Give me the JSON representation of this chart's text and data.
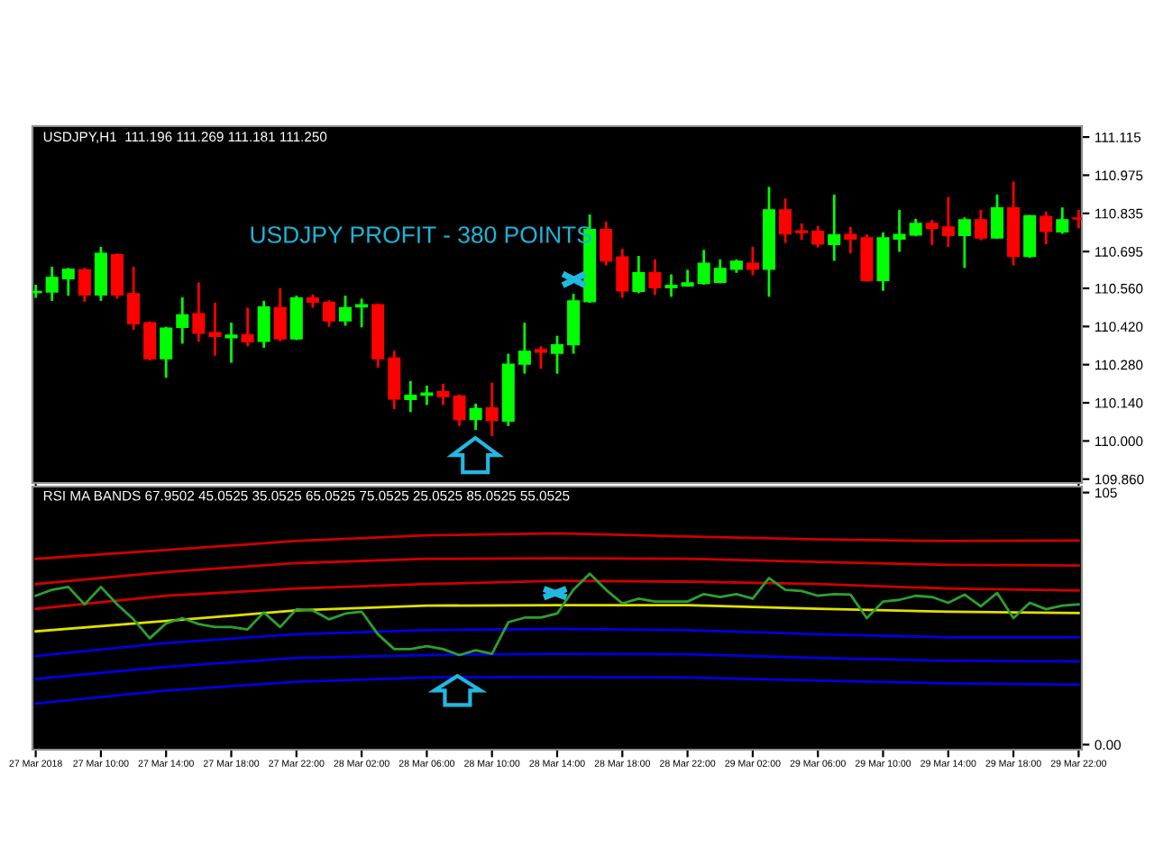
{
  "chart_data": [
    {
      "type": "candlestick",
      "title": "USDJPY,H1  111.196 111.269 111.181 111.250",
      "annotations": [
        "USDJPY PROFIT - 380 POINTS"
      ],
      "x": [
        "2018-03-27T06:00",
        "2018-03-27T07:00",
        "2018-03-27T08:00",
        "2018-03-27T09:00",
        "2018-03-27T10:00",
        "2018-03-27T11:00",
        "2018-03-27T12:00",
        "2018-03-27T13:00",
        "2018-03-27T14:00",
        "2018-03-27T15:00",
        "2018-03-27T16:00",
        "2018-03-27T17:00",
        "2018-03-27T18:00",
        "2018-03-27T19:00",
        "2018-03-27T20:00",
        "2018-03-27T21:00",
        "2018-03-27T22:00",
        "2018-03-27T23:00",
        "2018-03-28T00:00",
        "2018-03-28T01:00",
        "2018-03-28T02:00",
        "2018-03-28T03:00",
        "2018-03-28T04:00",
        "2018-03-28T05:00",
        "2018-03-28T06:00",
        "2018-03-28T07:00",
        "2018-03-28T08:00",
        "2018-03-28T09:00",
        "2018-03-28T10:00",
        "2018-03-28T11:00",
        "2018-03-28T12:00",
        "2018-03-28T13:00",
        "2018-03-28T14:00",
        "2018-03-28T15:00",
        "2018-03-28T16:00",
        "2018-03-28T17:00",
        "2018-03-28T18:00",
        "2018-03-28T19:00",
        "2018-03-28T20:00",
        "2018-03-28T21:00",
        "2018-03-28T22:00",
        "2018-03-28T23:00",
        "2018-03-29T00:00",
        "2018-03-29T01:00",
        "2018-03-29T02:00",
        "2018-03-29T03:00",
        "2018-03-29T04:00",
        "2018-03-29T05:00",
        "2018-03-29T06:00",
        "2018-03-29T07:00",
        "2018-03-29T08:00",
        "2018-03-29T09:00",
        "2018-03-29T10:00",
        "2018-03-29T11:00",
        "2018-03-29T12:00",
        "2018-03-29T13:00",
        "2018-03-29T14:00",
        "2018-03-29T15:00",
        "2018-03-29T16:00",
        "2018-03-29T17:00",
        "2018-03-29T18:00",
        "2018-03-29T19:00",
        "2018-03-29T20:00",
        "2018-03-29T21:00",
        "2018-03-29T22:00"
      ],
      "ohlc": [
        [
          110.544,
          110.573,
          110.525,
          110.549
        ],
        [
          110.547,
          110.639,
          110.514,
          110.6
        ],
        [
          110.595,
          110.635,
          110.533,
          110.63
        ],
        [
          110.628,
          110.635,
          110.511,
          110.536
        ],
        [
          110.536,
          110.712,
          110.514,
          110.688
        ],
        [
          110.683,
          110.688,
          110.522,
          110.536
        ],
        [
          110.54,
          110.639,
          110.408,
          110.43
        ],
        [
          110.434,
          110.439,
          110.295,
          110.302
        ],
        [
          110.302,
          110.419,
          110.232,
          110.414
        ],
        [
          110.417,
          110.527,
          110.357,
          110.463
        ],
        [
          110.467,
          110.582,
          110.364,
          110.395
        ],
        [
          110.397,
          110.507,
          110.313,
          110.384
        ],
        [
          110.379,
          110.434,
          110.287,
          110.388
        ],
        [
          110.39,
          110.489,
          110.348,
          110.364
        ],
        [
          110.366,
          110.514,
          110.342,
          110.492
        ],
        [
          110.489,
          110.56,
          110.366,
          110.375
        ],
        [
          110.375,
          110.533,
          110.37,
          110.525
        ],
        [
          110.525,
          110.538,
          110.489,
          110.509
        ],
        [
          110.509,
          110.516,
          110.419,
          110.441
        ],
        [
          110.441,
          110.533,
          110.423,
          110.489
        ],
        [
          110.492,
          110.522,
          110.417,
          110.5
        ],
        [
          110.5,
          110.505,
          110.269,
          110.302
        ],
        [
          110.304,
          110.331,
          110.117,
          110.154
        ],
        [
          110.152,
          110.22,
          110.106,
          110.168
        ],
        [
          110.168,
          110.203,
          110.132,
          110.176
        ],
        [
          110.181,
          110.21,
          110.132,
          110.163
        ],
        [
          110.165,
          110.17,
          110.055,
          110.079
        ],
        [
          110.079,
          110.137,
          110.04,
          110.119
        ],
        [
          110.121,
          110.214,
          110.018,
          110.075
        ],
        [
          110.073,
          110.32,
          110.055,
          110.282
        ],
        [
          110.282,
          110.434,
          110.247,
          110.329
        ],
        [
          110.335,
          110.348,
          110.265,
          110.326
        ],
        [
          110.322,
          110.386,
          110.247,
          110.353
        ],
        [
          110.353,
          110.54,
          110.32,
          110.514
        ],
        [
          110.511,
          110.831,
          110.507,
          110.776
        ],
        [
          110.776,
          110.804,
          110.644,
          110.661
        ],
        [
          110.675,
          110.705,
          110.525,
          110.551
        ],
        [
          110.549,
          110.679,
          110.542,
          110.617
        ],
        [
          110.617,
          110.666,
          110.536,
          110.562
        ],
        [
          110.562,
          110.611,
          110.529,
          110.571
        ],
        [
          110.569,
          110.628,
          110.566,
          110.58
        ],
        [
          110.578,
          110.701,
          110.573,
          110.652
        ],
        [
          110.582,
          110.666,
          110.578,
          110.633
        ],
        [
          110.63,
          110.666,
          110.617,
          110.659
        ],
        [
          110.652,
          110.712,
          110.608,
          110.63
        ],
        [
          110.63,
          110.932,
          110.529,
          110.848
        ],
        [
          110.848,
          110.89,
          110.727,
          110.76
        ],
        [
          110.771,
          110.798,
          110.738,
          110.765
        ],
        [
          110.769,
          110.789,
          110.71,
          110.723
        ],
        [
          110.721,
          110.904,
          110.661,
          110.756
        ],
        [
          110.758,
          110.785,
          110.688,
          110.741
        ],
        [
          110.745,
          110.758,
          110.584,
          110.589
        ],
        [
          110.589,
          110.765,
          110.551,
          110.745
        ],
        [
          110.741,
          110.848,
          110.694,
          110.758
        ],
        [
          110.756,
          110.815,
          110.751,
          110.798
        ],
        [
          110.798,
          110.811,
          110.719,
          110.78
        ],
        [
          110.785,
          110.895,
          110.712,
          110.754
        ],
        [
          110.754,
          110.82,
          110.635,
          110.811
        ],
        [
          110.811,
          110.848,
          110.736,
          110.745
        ],
        [
          110.745,
          110.904,
          110.741,
          110.855
        ],
        [
          110.855,
          110.952,
          110.644,
          110.677
        ],
        [
          110.677,
          110.829,
          110.672,
          110.826
        ],
        [
          110.824,
          110.842,
          110.721,
          110.769
        ],
        [
          110.767,
          110.857,
          110.76,
          110.811
        ],
        [
          110.818,
          110.848,
          110.78,
          110.815
        ]
      ],
      "colors": [
        "#00ff00",
        "#00ff00",
        "#00ff00",
        "#ff0000",
        "#00ff00",
        "#ff0000",
        "#ff0000",
        "#ff0000",
        "#00ff00",
        "#00ff00",
        "#ff0000",
        "#ff0000",
        "#00ff00",
        "#ff0000",
        "#00ff00",
        "#ff0000",
        "#00ff00",
        "#ff0000",
        "#ff0000",
        "#00ff00",
        "#00ff00",
        "#ff0000",
        "#ff0000",
        "#00ff00",
        "#00ff00",
        "#ff0000",
        "#ff0000",
        "#00ff00",
        "#ff0000",
        "#00ff00",
        "#00ff00",
        "#ff0000",
        "#00ff00",
        "#00ff00",
        "#00ff00",
        "#ff0000",
        "#ff0000",
        "#00ff00",
        "#ff0000",
        "#00ff00",
        "#00ff00",
        "#00ff00",
        "#00ff00",
        "#00ff00",
        "#ff0000",
        "#00ff00",
        "#ff0000",
        "#ff0000",
        "#ff0000",
        "#00ff00",
        "#ff0000",
        "#ff0000",
        "#00ff00",
        "#00ff00",
        "#00ff00",
        "#ff0000",
        "#ff0000",
        "#00ff00",
        "#ff0000",
        "#00ff00",
        "#ff0000",
        "#00ff00",
        "#ff0000",
        "#00ff00",
        "#ff0000"
      ],
      "xlim": [
        "2018-03-27T05:48",
        "2018-03-29T22:12"
      ],
      "ylim": [
        109.846,
        111.155
      ],
      "xticks": [
        {
          "value": "2018-03-27T06:00",
          "label": null
        },
        {
          "value": "2018-03-29T22:00",
          "label": null
        }
      ],
      "yticks": [
        111.115,
        110.975,
        110.835,
        110.695,
        {
          "value": 110.56,
          "label": "110.560"
        },
        {
          "value": 110.42,
          "label": "110.420"
        },
        {
          "value": 110.28,
          "label": "110.280"
        },
        {
          "value": 110.14,
          "label": "110.140"
        },
        {
          "value": 110.0,
          "label": "110.000"
        },
        {
          "value": 109.86,
          "label": "109.860"
        }
      ],
      "tick_labels": "y",
      "grid": false,
      "legend": false
    },
    {
      "type": "line",
      "title": "RSI MA BANDS 67.9502 45.0525 35.0525 65.0525 75.0525 25.0525 85.0525 55.0525",
      "x": [
        "2018-03-27T06:00",
        "2018-03-27T07:00",
        "2018-03-27T08:00",
        "2018-03-27T09:00",
        "2018-03-27T10:00",
        "2018-03-27T11:00",
        "2018-03-27T12:00",
        "2018-03-27T13:00",
        "2018-03-27T14:00",
        "2018-03-27T15:00",
        "2018-03-27T16:00",
        "2018-03-27T17:00",
        "2018-03-27T18:00",
        "2018-03-27T19:00",
        "2018-03-27T20:00",
        "2018-03-27T21:00",
        "2018-03-27T22:00",
        "2018-03-27T23:00",
        "2018-03-28T00:00",
        "2018-03-28T01:00",
        "2018-03-28T02:00",
        "2018-03-28T03:00",
        "2018-03-28T04:00",
        "2018-03-28T05:00",
        "2018-03-28T06:00",
        "2018-03-28T07:00",
        "2018-03-28T08:00",
        "2018-03-28T09:00",
        "2018-03-28T10:00",
        "2018-03-28T11:00",
        "2018-03-28T12:00",
        "2018-03-28T13:00",
        "2018-03-28T14:00",
        "2018-03-28T15:00",
        "2018-03-28T16:00",
        "2018-03-28T17:00",
        "2018-03-28T18:00",
        "2018-03-28T19:00",
        "2018-03-28T20:00",
        "2018-03-28T21:00",
        "2018-03-28T22:00",
        "2018-03-28T23:00",
        "2018-03-29T00:00",
        "2018-03-29T01:00",
        "2018-03-29T02:00",
        "2018-03-29T03:00",
        "2018-03-29T04:00",
        "2018-03-29T05:00",
        "2018-03-29T06:00",
        "2018-03-29T07:00",
        "2018-03-29T08:00",
        "2018-03-29T09:00",
        "2018-03-29T10:00",
        "2018-03-29T11:00",
        "2018-03-29T12:00",
        "2018-03-29T13:00",
        "2018-03-29T14:00",
        "2018-03-29T15:00",
        "2018-03-29T16:00",
        "2018-03-29T17:00",
        "2018-03-29T18:00",
        "2018-03-29T19:00",
        "2018-03-29T20:00",
        "2018-03-29T21:00",
        "2018-03-29T22:00"
      ],
      "series": [
        {
          "color": "#d00000",
          "x": [
            "2018-03-27T06:00",
            "2018-03-27T14:00",
            "2018-03-27T22:00",
            "2018-03-28T06:00",
            "2018-03-28T14:00",
            "2018-03-28T22:00",
            "2018-03-29T06:00",
            "2018-03-29T14:00",
            "2018-03-29T22:00"
          ],
          "values": [
            77.4,
            81.1,
            84.8,
            87.2,
            88.0,
            86.7,
            85.5,
            84.8,
            85.0
          ]
        },
        {
          "color": "#d00000",
          "x": [
            "2018-03-27T06:00",
            "2018-03-27T14:00",
            "2018-03-27T22:00",
            "2018-03-28T06:00",
            "2018-03-28T14:00",
            "2018-03-28T22:00",
            "2018-03-29T06:00",
            "2018-03-29T14:00",
            "2018-03-29T22:00"
          ],
          "values": [
            66.9,
            71.9,
            75.6,
            77.4,
            77.6,
            77.4,
            76.1,
            74.9,
            74.6
          ]
        },
        {
          "color": "#d00000",
          "x": [
            "2018-03-27T06:00",
            "2018-03-27T14:00",
            "2018-03-27T22:00",
            "2018-03-28T06:00",
            "2018-03-28T14:00",
            "2018-03-28T22:00",
            "2018-03-29T06:00",
            "2018-03-29T14:00",
            "2018-03-29T22:00"
          ],
          "values": [
            56.6,
            62.0,
            65.0,
            66.9,
            68.2,
            67.9,
            66.9,
            65.0,
            64.2
          ]
        },
        {
          "color": "#e0e000",
          "x": [
            "2018-03-27T06:00",
            "2018-03-27T14:00",
            "2018-03-27T22:00",
            "2018-03-28T06:00",
            "2018-03-28T14:00",
            "2018-03-28T22:00",
            "2018-03-29T06:00",
            "2018-03-29T14:00",
            "2018-03-29T22:00"
          ],
          "values": [
            47.2,
            51.5,
            55.9,
            57.9,
            58.1,
            58.1,
            56.6,
            55.4,
            54.8
          ]
        },
        {
          "color": "#0000e0",
          "x": [
            "2018-03-27T06:00",
            "2018-03-27T14:00",
            "2018-03-27T22:00",
            "2018-03-28T06:00",
            "2018-03-28T14:00",
            "2018-03-28T22:00",
            "2018-03-29T06:00",
            "2018-03-29T14:00",
            "2018-03-29T22:00"
          ],
          "values": [
            36.9,
            42.3,
            46.0,
            47.7,
            48.2,
            47.7,
            46.0,
            44.7,
            44.7
          ]
        },
        {
          "color": "#0000e0",
          "x": [
            "2018-03-27T06:00",
            "2018-03-27T14:00",
            "2018-03-27T22:00",
            "2018-03-28T06:00",
            "2018-03-28T14:00",
            "2018-03-28T22:00",
            "2018-03-29T06:00",
            "2018-03-29T14:00",
            "2018-03-29T22:00"
          ],
          "values": [
            27.4,
            32.4,
            36.1,
            37.3,
            37.8,
            37.6,
            36.1,
            34.9,
            34.6
          ]
        },
        {
          "color": "#0000e0",
          "x": [
            "2018-03-27T06:00",
            "2018-03-27T14:00",
            "2018-03-27T22:00",
            "2018-03-28T06:00",
            "2018-03-28T14:00",
            "2018-03-28T22:00",
            "2018-03-29T06:00",
            "2018-03-29T14:00",
            "2018-03-29T22:00"
          ],
          "values": [
            17.1,
            22.5,
            26.2,
            28.0,
            28.2,
            28.0,
            26.7,
            25.5,
            25.0
          ]
        },
        {
          "color": "#2ea02e",
          "values": [
            62.0,
            64.5,
            65.7,
            58.4,
            65.7,
            58.4,
            52.2,
            44.3,
            50.5,
            52.7,
            50.2,
            49.0,
            49.0,
            48.0,
            55.1,
            49.0,
            56.4,
            55.9,
            52.2,
            54.6,
            55.4,
            46.0,
            39.8,
            39.8,
            41.0,
            39.8,
            37.3,
            39.3,
            37.8,
            51.0,
            52.9,
            52.9,
            54.6,
            64.5,
            71.2,
            64.5,
            58.8,
            60.8,
            59.6,
            59.6,
            59.6,
            62.7,
            61.5,
            62.7,
            60.8,
            69.4,
            64.5,
            64.0,
            62.0,
            62.7,
            62.5,
            52.7,
            59.6,
            60.3,
            62.0,
            61.5,
            59.1,
            62.5,
            57.6,
            63.2,
            52.7,
            59.1,
            56.4,
            57.9,
            58.4
          ]
        }
      ],
      "xlim": [
        "2018-03-27T05:48",
        "2018-03-29T22:12"
      ],
      "ylim": [
        -2.1,
        107.5
      ],
      "yticks": [
        {
          "value": 0,
          "label": "0.00"
        },
        105
      ],
      "xticks": [
        {
          "value": "2018-03-27T06:00",
          "label": "27 Mar 2018"
        },
        {
          "value": "2018-03-27T10:00",
          "label": "27 Mar 10:00"
        },
        {
          "value": "2018-03-27T14:00",
          "label": "27 Mar 14:00"
        },
        {
          "value": "2018-03-27T18:00",
          "label": "27 Mar 18:00"
        },
        {
          "value": "2018-03-27T22:00",
          "label": "27 Mar 22:00"
        },
        {
          "value": "2018-03-28T02:00",
          "label": "28 Mar 02:00"
        },
        {
          "value": "2018-03-28T06:00",
          "label": "28 Mar 06:00"
        },
        {
          "value": "2018-03-28T10:00",
          "label": "28 Mar 10:00"
        },
        {
          "value": "2018-03-28T14:00",
          "label": "28 Mar 14:00"
        },
        {
          "value": "2018-03-28T18:00",
          "label": "28 Mar 18:00"
        },
        {
          "value": "2018-03-28T22:00",
          "label": "28 Mar 22:00"
        },
        {
          "value": "2018-03-29T02:00",
          "label": "29 Mar 02:00"
        },
        {
          "value": "2018-03-29T06:00",
          "label": "29 Mar 06:00"
        },
        {
          "value": "2018-03-29T10:00",
          "label": "29 Mar 10:00"
        },
        {
          "value": "2018-03-29T14:00",
          "label": "29 Mar 14:00"
        },
        {
          "value": "2018-03-29T18:00",
          "label": "29 Mar 18:00"
        },
        {
          "value": "2018-03-29T22:00",
          "label": "29 Mar 22:00"
        }
      ],
      "grid": false,
      "legend": false,
      "marker": "none",
      "line_style": "solid"
    }
  ]
}
